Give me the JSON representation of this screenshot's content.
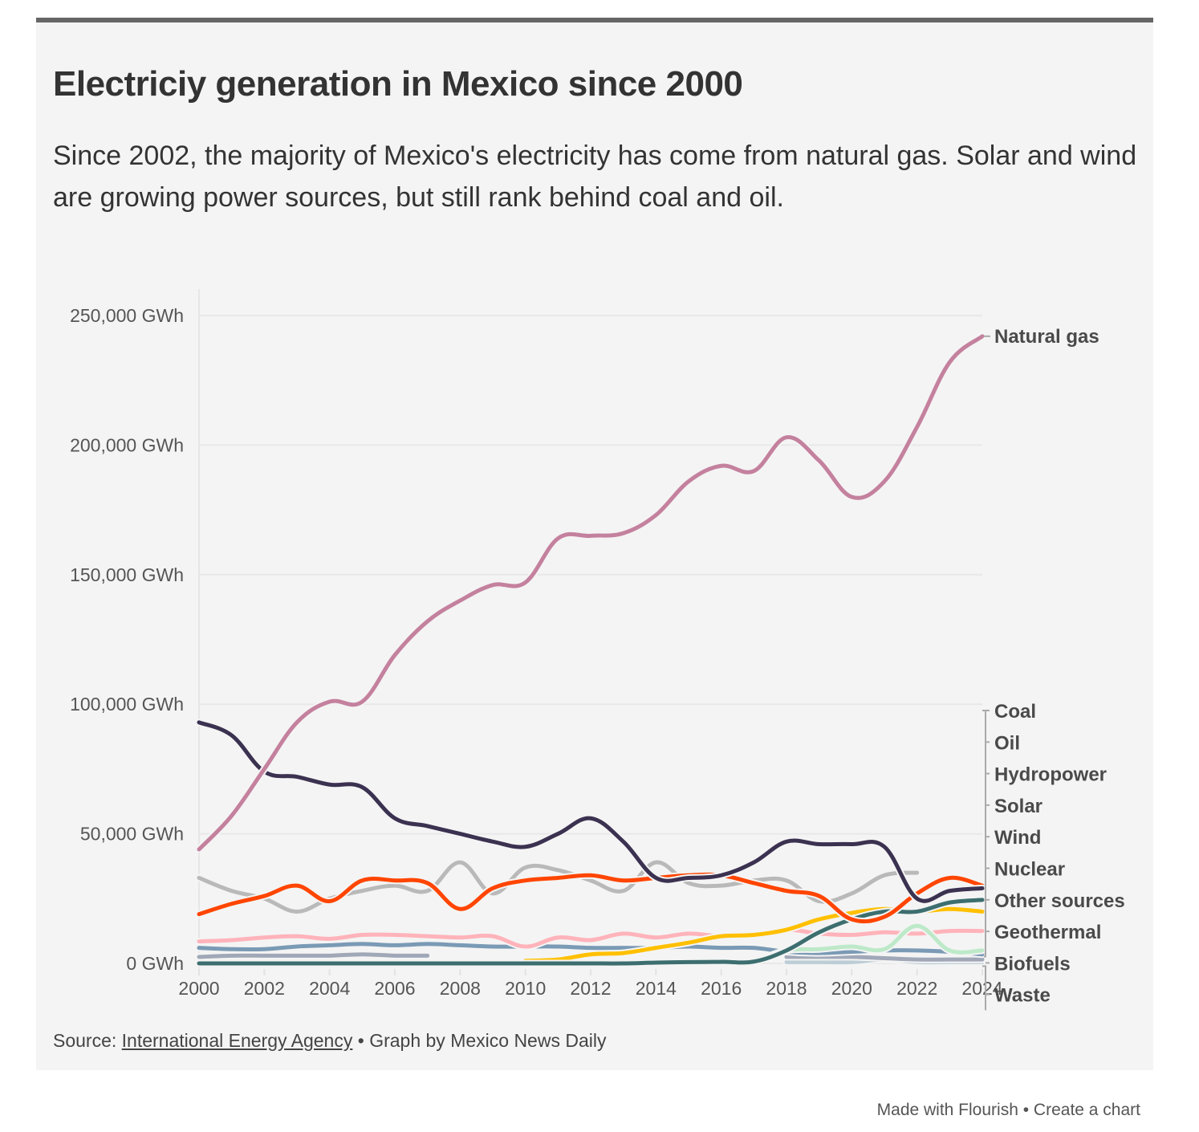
{
  "header": {
    "title": "Electriciy generation in Mexico since 2000",
    "subtitle": "Since 2002, the majority of Mexico's electricity has come from natural gas. Solar and wind are growing power sources, but still rank behind coal and oil."
  },
  "footer": {
    "source_prefix": "Source:",
    "source_link": "International Energy Agency",
    "separator": "•",
    "byline": "Graph by Mexico News Daily"
  },
  "credits": {
    "made_with": "Made with Flourish",
    "separator": "•",
    "create": "Create a chart"
  },
  "chart_data": {
    "type": "line",
    "title": "Electriciy generation in Mexico since 2000",
    "xlabel": "",
    "ylabel": "",
    "x": [
      2000,
      2001,
      2002,
      2003,
      2004,
      2005,
      2006,
      2007,
      2008,
      2009,
      2010,
      2011,
      2012,
      2013,
      2014,
      2015,
      2016,
      2017,
      2018,
      2019,
      2020,
      2021,
      2022,
      2023,
      2024
    ],
    "xlim": [
      2000,
      2024
    ],
    "ylim": [
      0,
      250000
    ],
    "y_unit": "GWh",
    "y_ticks": [
      0,
      50000,
      100000,
      150000,
      200000,
      250000
    ],
    "y_tick_labels": [
      "0 GWh",
      "50,000 GWh",
      "100,000 GWh",
      "150,000 GWh",
      "200,000 GWh",
      "250,000 GWh"
    ],
    "x_ticks": [
      2000,
      2002,
      2004,
      2006,
      2008,
      2010,
      2012,
      2014,
      2016,
      2018,
      2020,
      2022,
      2024
    ],
    "x_tick_labels": [
      "2000",
      "2002",
      "2004",
      "2006",
      "2008",
      "2010",
      "2012",
      "2014",
      "2016",
      "2018",
      "2020",
      "2022",
      "2024"
    ],
    "grid": true,
    "legend": "direct-labels-right",
    "series": [
      {
        "name": "Natural gas",
        "color": "#c4819e",
        "values": [
          44000,
          57000,
          75000,
          93000,
          101000,
          101000,
          119000,
          132000,
          140000,
          146000,
          147000,
          164000,
          165000,
          166000,
          173000,
          186000,
          192000,
          190000,
          203000,
          194000,
          180000,
          186000,
          207000,
          232000,
          242000
        ]
      },
      {
        "name": "Coal",
        "color": "#ff4500",
        "values": [
          19000,
          23000,
          26000,
          30000,
          24000,
          32000,
          32000,
          31000,
          21000,
          29000,
          32000,
          33000,
          34000,
          32000,
          33000,
          34000,
          34000,
          31000,
          28000,
          26000,
          17000,
          18000,
          27000,
          33000,
          30000
        ]
      },
      {
        "name": "Oil",
        "color": "#3b3150",
        "values": [
          93000,
          88000,
          74000,
          72000,
          69000,
          68000,
          56000,
          53000,
          50000,
          47000,
          45000,
          50000,
          56000,
          47000,
          33000,
          33000,
          34000,
          39000,
          47000,
          46000,
          46000,
          45000,
          25000,
          28000,
          29000
        ]
      },
      {
        "name": "Hydropower",
        "color": "#b9b9b9",
        "values": [
          33000,
          28000,
          25000,
          20000,
          25000,
          28000,
          30000,
          28000,
          39000,
          27000,
          37000,
          36000,
          32000,
          28000,
          39000,
          31000,
          30000,
          32000,
          32000,
          24000,
          27000,
          34000,
          35000,
          null,
          null
        ]
      },
      {
        "name": "Solar",
        "color": "#ffc000",
        "values": [
          null,
          null,
          null,
          null,
          null,
          null,
          null,
          null,
          null,
          null,
          1000,
          1500,
          3500,
          4000,
          6000,
          8000,
          10500,
          11000,
          13000,
          17000,
          19500,
          21000,
          20000,
          21000,
          20000
        ]
      },
      {
        "name": "Wind",
        "color": "#3d6e6f",
        "values": [
          0,
          0,
          0,
          0,
          0,
          0,
          0,
          0,
          0,
          0,
          0,
          0,
          0,
          0,
          300,
          500,
          600,
          700,
          5000,
          12000,
          17000,
          20000,
          20000,
          23500,
          24500
        ]
      },
      {
        "name": "Nuclear",
        "color": "#7a9ab5",
        "values": [
          6000,
          5500,
          5500,
          6500,
          7000,
          7500,
          7000,
          7500,
          7000,
          6500,
          6500,
          6500,
          6000,
          6000,
          6000,
          6500,
          6000,
          6000,
          4500,
          4000,
          4500,
          5000,
          5000,
          4500,
          3500
        ]
      },
      {
        "name": "Other sources",
        "color": "#a0a8b8",
        "values": [
          2500,
          3000,
          3000,
          3000,
          3000,
          3500,
          3000,
          3000,
          null,
          null,
          null,
          null,
          null,
          null,
          null,
          null,
          null,
          null,
          2500,
          2500,
          2500,
          2000,
          1500,
          1500,
          1500
        ]
      },
      {
        "name": "Geothermal",
        "color": "#ffb3ba",
        "values": [
          8500,
          9000,
          10000,
          10500,
          9500,
          11000,
          11000,
          10500,
          10000,
          10500,
          6500,
          10000,
          9000,
          11500,
          10000,
          11500,
          10500,
          11000,
          13000,
          11500,
          11000,
          12000,
          11500,
          12500,
          12500
        ]
      },
      {
        "name": "Biofuels",
        "color": "#bde9c9",
        "values": [
          null,
          null,
          null,
          null,
          null,
          null,
          null,
          null,
          null,
          null,
          null,
          null,
          null,
          null,
          null,
          null,
          null,
          500,
          5000,
          5500,
          6500,
          5500,
          14500,
          5000,
          5000
        ]
      },
      {
        "name": "Waste",
        "color": "#bccdd6",
        "values": [
          null,
          null,
          null,
          null,
          null,
          null,
          null,
          null,
          null,
          null,
          null,
          null,
          null,
          null,
          null,
          null,
          null,
          null,
          500,
          500,
          500,
          1500,
          500,
          500,
          500
        ]
      }
    ],
    "end_labels": [
      "Natural gas",
      "Coal",
      "Oil",
      "Hydropower",
      "Solar",
      "Wind",
      "Nuclear",
      "Other sources",
      "Geothermal",
      "Biofuels",
      "Waste"
    ]
  }
}
